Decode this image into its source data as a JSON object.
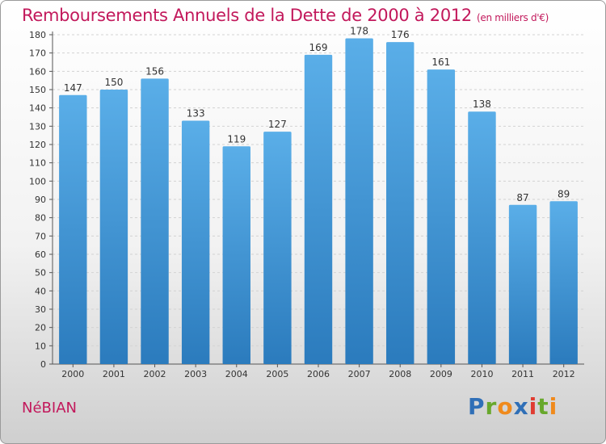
{
  "header": {
    "title": "Remboursements Annuels de la Dette de 2000 à 2012",
    "unit": "(en milliers d'€)"
  },
  "location": "NéBIAN",
  "logo": {
    "text": "Proxiti",
    "colors": [
      "#2f6fb7",
      "#68a82c",
      "#f08a1c",
      "#2f6fb7",
      "#e03c31",
      "#68a82c",
      "#f08a1c"
    ]
  },
  "chart_data": {
    "type": "bar",
    "title": "Remboursements Annuels de la Dette de 2000 à 2012",
    "unit": "(en milliers d'€)",
    "categories": [
      "2000",
      "2001",
      "2002",
      "2003",
      "2004",
      "2005",
      "2006",
      "2007",
      "2008",
      "2009",
      "2010",
      "2011",
      "2012"
    ],
    "values": [
      147,
      150,
      156,
      133,
      119,
      127,
      169,
      178,
      176,
      161,
      138,
      87,
      89
    ],
    "ylim": [
      0,
      180
    ],
    "yticks": [
      0,
      10,
      20,
      30,
      40,
      50,
      60,
      70,
      80,
      90,
      100,
      110,
      120,
      130,
      140,
      150,
      160,
      170,
      180
    ],
    "xlabel": "",
    "ylabel": "",
    "grid": true,
    "legend": "none",
    "bar_color_top": "#5aaee8",
    "bar_color_bottom": "#2b7bbd"
  }
}
